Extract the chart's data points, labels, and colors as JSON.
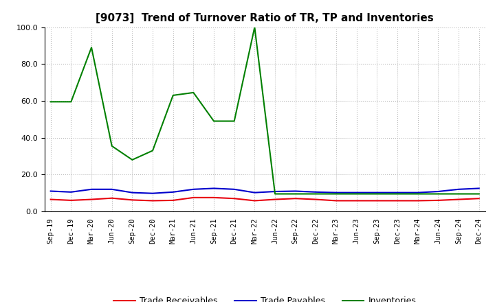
{
  "title": "[9073]  Trend of Turnover Ratio of TR, TP and Inventories",
  "x_labels": [
    "Sep-19",
    "Dec-19",
    "Mar-20",
    "Jun-20",
    "Sep-20",
    "Dec-20",
    "Mar-21",
    "Jun-21",
    "Sep-21",
    "Dec-21",
    "Mar-22",
    "Jun-22",
    "Sep-22",
    "Dec-22",
    "Mar-23",
    "Jun-23",
    "Sep-23",
    "Dec-23",
    "Mar-24",
    "Jun-24",
    "Sep-24",
    "Dec-24"
  ],
  "trade_receivables": [
    6.5,
    6.0,
    6.5,
    7.2,
    6.2,
    5.8,
    6.0,
    7.5,
    7.5,
    7.0,
    5.8,
    6.5,
    7.0,
    6.5,
    5.8,
    5.8,
    5.8,
    5.8,
    5.8,
    6.0,
    6.5,
    7.0
  ],
  "trade_payables": [
    11.0,
    10.5,
    12.0,
    12.0,
    10.2,
    9.8,
    10.5,
    12.0,
    12.5,
    12.0,
    10.2,
    10.8,
    11.0,
    10.5,
    10.2,
    10.2,
    10.2,
    10.2,
    10.2,
    10.8,
    12.0,
    12.5
  ],
  "inventories": [
    59.5,
    59.5,
    89.0,
    35.5,
    28.0,
    33.0,
    63.0,
    64.5,
    49.0,
    49.0,
    100.0,
    9.5,
    9.5,
    9.5,
    9.5,
    9.5,
    9.5,
    9.5,
    9.5,
    9.5,
    9.5,
    9.5
  ],
  "color_tr": "#e8000d",
  "color_tp": "#0000cc",
  "color_inv": "#008000",
  "ylim": [
    0.0,
    100.0
  ],
  "yticks": [
    0.0,
    20.0,
    40.0,
    60.0,
    80.0,
    100.0
  ],
  "background_color": "#ffffff",
  "grid_color": "#bbbbbb"
}
